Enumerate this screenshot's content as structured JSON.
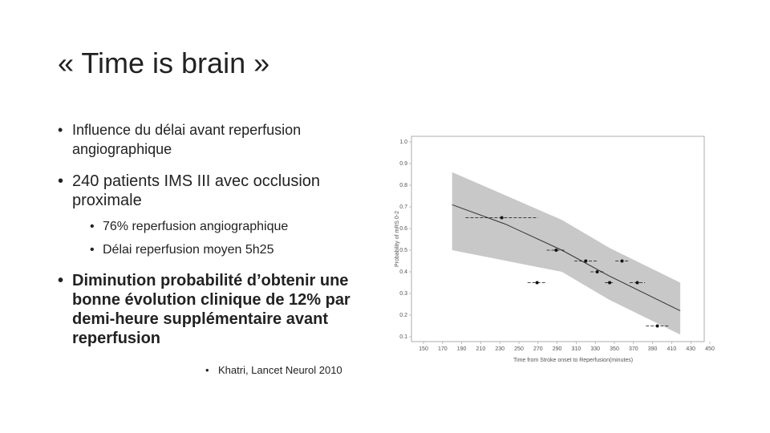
{
  "slide": {
    "title": "« Time is brain »",
    "bullets": [
      "Influence du délai avant reperfusion angiographique",
      "240 patients IMS III avec occlusion proximale"
    ],
    "sub_bullets": [
      "76% reperfusion angiographique",
      "Délai reperfusion moyen 5h25"
    ],
    "conclusion": "Diminution probabilité d’obtenir une bonne évolution clinique de 12% par demi-heure supplémentaire avant reperfusion",
    "citation": "Khatri, Lancet Neurol 2010"
  },
  "chart_data": {
    "type": "line",
    "x_label": "Time from Stroke onset to Reperfusion(minutes)",
    "y_label": "Probability of mRS 0-2",
    "xlim": [
      150,
      450
    ],
    "xticks": [
      150,
      170,
      190,
      210,
      230,
      250,
      270,
      290,
      310,
      330,
      350,
      370,
      390,
      410,
      430,
      450
    ],
    "ylim": [
      0.1,
      1.0
    ],
    "yticks": [
      0.1,
      0.2,
      0.3,
      0.4,
      0.5,
      0.6,
      0.7,
      0.8,
      0.9,
      {
        "value": 1,
        "label": "1.0"
      }
    ],
    "fit": {
      "color": "#333333",
      "x": [
        180,
        236,
        295,
        345,
        419
      ],
      "values": [
        0.71,
        0.62,
        0.5,
        0.38,
        0.22
      ]
    },
    "band": {
      "color": "#c8c8c8",
      "x": [
        180,
        295,
        345,
        419
      ],
      "upper": [
        0.86,
        0.64,
        0.51,
        0.35
      ],
      "lower": [
        0.5,
        0.4,
        0.27,
        0.11
      ]
    },
    "points": {
      "color": "#111111",
      "x": [
        232,
        269,
        289,
        320,
        332,
        345,
        358,
        374,
        395
      ],
      "values": [
        0.65,
        0.35,
        0.5,
        0.45,
        0.4,
        0.35,
        0.45,
        0.35,
        0.15
      ],
      "xerr": [
        38,
        10,
        10,
        12,
        7,
        5,
        7,
        8,
        12
      ]
    }
  }
}
